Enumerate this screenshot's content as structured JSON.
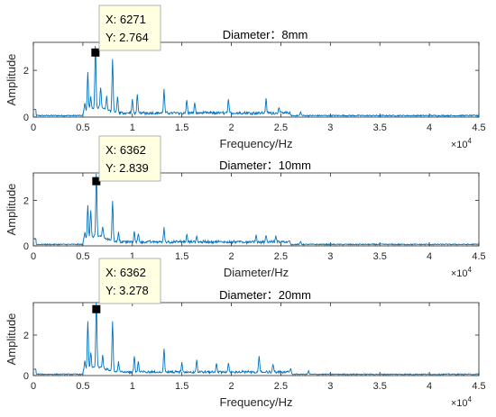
{
  "chart_data": [
    {
      "type": "line",
      "title": "Diameter：8mm",
      "xlabel": "Frequency/Hz",
      "ylabel": "Amplitude",
      "x_multiplier": "×10",
      "x_multiplier_exp": "4",
      "xlim": [
        0,
        4.5
      ],
      "ylim": [
        0,
        3.2
      ],
      "xticks": [
        "0",
        "0.5",
        "1",
        "1.5",
        "2",
        "2.5",
        "3",
        "3.5",
        "4",
        "4.5"
      ],
      "yticks": [
        "0",
        "2"
      ],
      "color": "#0072bd",
      "datatip": {
        "x": 6271,
        "y": 2.764,
        "x_label": "X: 6271",
        "y_label": "Y: 2.764"
      },
      "peaks": [
        {
          "x": 0.52,
          "y": 0.35
        },
        {
          "x": 0.55,
          "y": 1.6
        },
        {
          "x": 0.58,
          "y": 0.5
        },
        {
          "x": 0.6271,
          "y": 2.764
        },
        {
          "x": 0.68,
          "y": 0.9
        },
        {
          "x": 0.74,
          "y": 0.6
        },
        {
          "x": 0.8,
          "y": 2.3
        },
        {
          "x": 0.85,
          "y": 0.7
        },
        {
          "x": 1.0,
          "y": 0.55
        },
        {
          "x": 1.05,
          "y": 0.75
        },
        {
          "x": 1.32,
          "y": 1.0
        },
        {
          "x": 1.55,
          "y": 0.55
        },
        {
          "x": 1.63,
          "y": 0.4
        },
        {
          "x": 1.97,
          "y": 0.55
        },
        {
          "x": 2.35,
          "y": 0.6
        },
        {
          "x": 2.48,
          "y": 0.25
        },
        {
          "x": 2.7,
          "y": 0.15
        }
      ]
    },
    {
      "type": "line",
      "title": "Diameter：10mm",
      "xlabel": "Diameter/Hz",
      "ylabel": "Amplitude",
      "x_multiplier": "×10",
      "x_multiplier_exp": "4",
      "xlim": [
        0,
        4.5
      ],
      "ylim": [
        0,
        3.2
      ],
      "xticks": [
        "0",
        "0.5",
        "1",
        "1.5",
        "2",
        "2.5",
        "3",
        "3.5",
        "4",
        "4.5"
      ],
      "yticks": [
        "0",
        "2"
      ],
      "color": "#0072bd",
      "datatip": {
        "x": 6362,
        "y": 2.839,
        "x_label": "X: 6362",
        "y_label": "Y: 2.839"
      },
      "peaks": [
        {
          "x": 0.52,
          "y": 0.4
        },
        {
          "x": 0.55,
          "y": 1.5
        },
        {
          "x": 0.58,
          "y": 1.2
        },
        {
          "x": 0.6362,
          "y": 2.839
        },
        {
          "x": 0.7,
          "y": 0.5
        },
        {
          "x": 0.8,
          "y": 1.8
        },
        {
          "x": 0.86,
          "y": 0.4
        },
        {
          "x": 1.02,
          "y": 0.45
        },
        {
          "x": 1.06,
          "y": 0.35
        },
        {
          "x": 1.32,
          "y": 0.6
        },
        {
          "x": 1.55,
          "y": 0.3
        },
        {
          "x": 1.65,
          "y": 0.25
        },
        {
          "x": 2.25,
          "y": 0.25
        },
        {
          "x": 2.35,
          "y": 0.3
        },
        {
          "x": 2.45,
          "y": 0.25
        },
        {
          "x": 2.7,
          "y": 0.12
        }
      ]
    },
    {
      "type": "line",
      "title": "Diameter：20mm",
      "xlabel": "Frequency/Hz",
      "ylabel": "Amplitude",
      "x_multiplier": "×10",
      "x_multiplier_exp": "4",
      "xlim": [
        0,
        4.5
      ],
      "ylim": [
        0,
        3.6
      ],
      "xticks": [
        "0",
        "0.5",
        "1",
        "1.5",
        "2",
        "2.5",
        "3",
        "3.5",
        "4",
        "4.5"
      ],
      "yticks": [
        "0",
        "2"
      ],
      "color": "#0072bd",
      "datatip": {
        "x": 6362,
        "y": 3.278,
        "x_label": "X: 6362",
        "y_label": "Y: 3.278"
      },
      "peaks": [
        {
          "x": 0.52,
          "y": 0.5
        },
        {
          "x": 0.55,
          "y": 2.4
        },
        {
          "x": 0.58,
          "y": 0.8
        },
        {
          "x": 0.6362,
          "y": 3.278
        },
        {
          "x": 0.7,
          "y": 0.6
        },
        {
          "x": 0.8,
          "y": 2.5
        },
        {
          "x": 0.86,
          "y": 0.5
        },
        {
          "x": 1.02,
          "y": 0.8
        },
        {
          "x": 1.06,
          "y": 0.5
        },
        {
          "x": 1.32,
          "y": 1.2
        },
        {
          "x": 1.5,
          "y": 0.45
        },
        {
          "x": 1.65,
          "y": 0.6
        },
        {
          "x": 1.85,
          "y": 0.45
        },
        {
          "x": 1.97,
          "y": 0.4
        },
        {
          "x": 2.28,
          "y": 0.75
        },
        {
          "x": 2.42,
          "y": 0.4
        },
        {
          "x": 2.6,
          "y": 0.25
        },
        {
          "x": 2.78,
          "y": 0.15
        }
      ]
    }
  ]
}
